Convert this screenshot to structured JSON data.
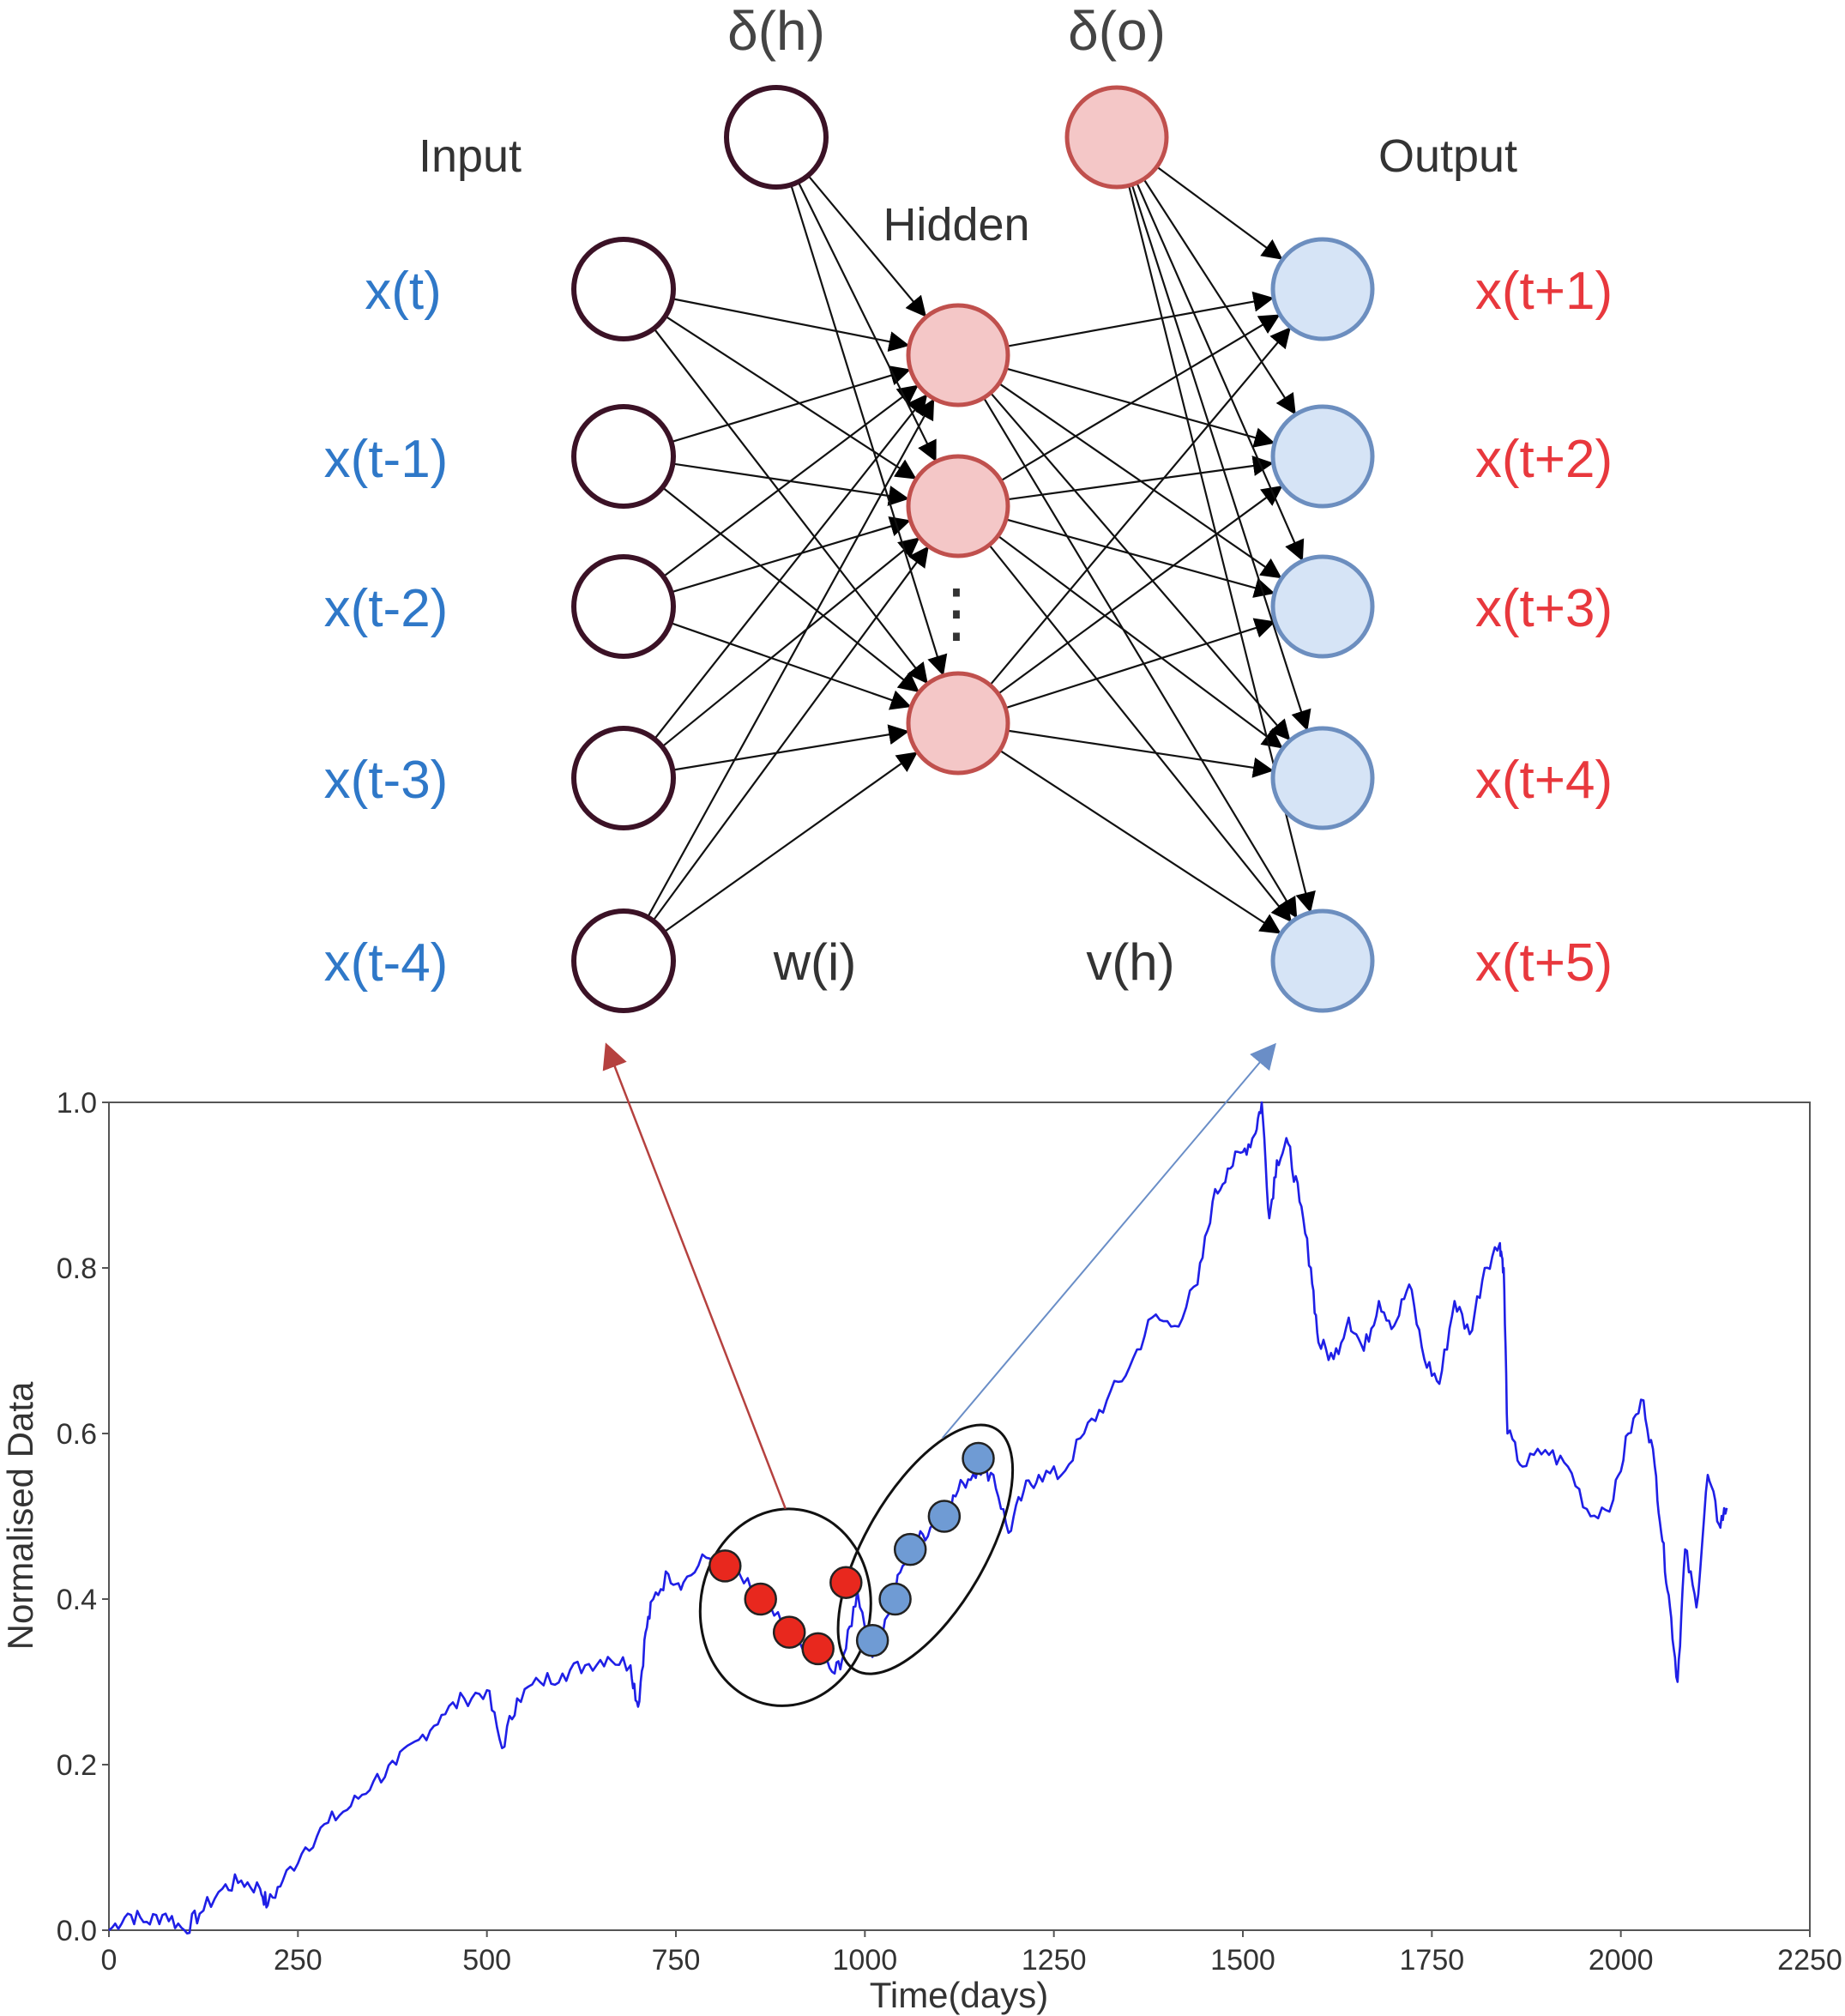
{
  "network": {
    "input_header": "Input",
    "hidden_header": "Hidden",
    "output_header": "Output",
    "bias_hidden": "δ(h)",
    "bias_output": "δ(o)",
    "input_weights": "w(i)",
    "output_weights": "v(h)",
    "hidden_ellipsis": "⋮",
    "input_labels": [
      "x(t)",
      "x(t-1)",
      "x(t-2)",
      "x(t-3)",
      "x(t-4)"
    ],
    "output_labels": [
      "x(t+1)",
      "x(t+2)",
      "x(t+3)",
      "x(t+4)",
      "x(t+5)"
    ],
    "colors": {
      "input_node_stroke": "#3b1226",
      "hidden_fill": "#f4c7c7",
      "hidden_stroke": "#c0504d",
      "output_fill": "#d6e4f6",
      "output_stroke": "#6c8ebf",
      "input_label": "#2f78c8",
      "output_label": "#e8383d",
      "connector_input": "#b5413f",
      "connector_output": "#6a8ec7"
    }
  },
  "chart_data": {
    "type": "line",
    "title": "",
    "xlabel": "Time(days)",
    "ylabel": "Normalised Data",
    "xlim": [
      0,
      2250
    ],
    "ylim": [
      0.0,
      1.0
    ],
    "xticks": [
      0,
      250,
      500,
      750,
      1000,
      1250,
      1500,
      1750,
      2000,
      2250
    ],
    "yticks": [
      0.0,
      0.2,
      0.4,
      0.6,
      0.8,
      1.0
    ],
    "grid": false,
    "line_color": "#1f1fe6",
    "series": [
      {
        "x": [
          0,
          25,
          50,
          75,
          100,
          120,
          150,
          175,
          200,
          210,
          230,
          260,
          290,
          320,
          350,
          380,
          410,
          440,
          470,
          500,
          520,
          540,
          570,
          600,
          630,
          660,
          690,
          700,
          710,
          720,
          740,
          760,
          790,
          820,
          850,
          880,
          910,
          940,
          960,
          975,
          990,
          1010,
          1030,
          1050,
          1070,
          1090,
          1110,
          1130,
          1150,
          1170,
          1190,
          1210,
          1230,
          1260,
          1290,
          1320,
          1350,
          1380,
          1410,
          1440,
          1460,
          1480,
          1500,
          1515,
          1525,
          1535,
          1545,
          1560,
          1575,
          1590,
          1600,
          1620,
          1640,
          1660,
          1680,
          1700,
          1720,
          1740,
          1760,
          1780,
          1800,
          1820,
          1840,
          1845,
          1850,
          1870,
          1900,
          1930,
          1960,
          1990,
          2010,
          2030,
          2045,
          2055,
          2065,
          2075,
          2085,
          2100,
          2115,
          2130,
          2140
        ],
        "y": [
          0.0,
          0.02,
          0.01,
          0.02,
          0.0,
          0.02,
          0.05,
          0.06,
          0.05,
          0.03,
          0.06,
          0.1,
          0.13,
          0.15,
          0.18,
          0.2,
          0.23,
          0.26,
          0.28,
          0.29,
          0.22,
          0.28,
          0.3,
          0.31,
          0.32,
          0.33,
          0.32,
          0.27,
          0.36,
          0.4,
          0.43,
          0.42,
          0.45,
          0.44,
          0.41,
          0.38,
          0.35,
          0.33,
          0.31,
          0.34,
          0.41,
          0.33,
          0.38,
          0.44,
          0.47,
          0.49,
          0.51,
          0.54,
          0.56,
          0.55,
          0.48,
          0.53,
          0.55,
          0.55,
          0.6,
          0.64,
          0.68,
          0.74,
          0.73,
          0.78,
          0.88,
          0.92,
          0.94,
          0.96,
          1.0,
          0.86,
          0.93,
          0.95,
          0.88,
          0.8,
          0.71,
          0.69,
          0.74,
          0.7,
          0.76,
          0.73,
          0.78,
          0.69,
          0.66,
          0.76,
          0.72,
          0.8,
          0.83,
          0.8,
          0.6,
          0.56,
          0.58,
          0.56,
          0.5,
          0.52,
          0.6,
          0.64,
          0.56,
          0.47,
          0.39,
          0.3,
          0.46,
          0.39,
          0.55,
          0.49,
          0.51
        ]
      }
    ],
    "marked_window_red": {
      "x": [
        815,
        862,
        900,
        938,
        975
      ],
      "y": [
        0.44,
        0.4,
        0.36,
        0.34,
        0.42
      ],
      "color": "#e8281e"
    },
    "marked_window_blue": {
      "x": [
        1010,
        1040,
        1060,
        1105,
        1150
      ],
      "y": [
        0.35,
        0.4,
        0.46,
        0.5,
        0.57
      ],
      "color": "#6f9bd4"
    }
  }
}
